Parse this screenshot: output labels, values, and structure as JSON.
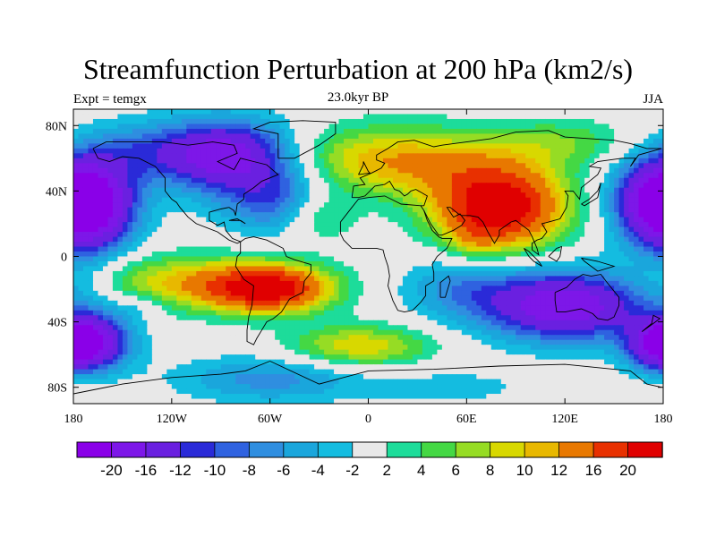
{
  "chart_data": {
    "type": "heatmap",
    "title": "Streamfunction Perturbation at 200 hPa (km2/s)",
    "subtitle": "23.0kyr BP",
    "left_label": "Expt = temgx",
    "right_label": "JJA",
    "xlim": [
      -180,
      180
    ],
    "ylim": [
      -90,
      90
    ],
    "x_ticks": [
      {
        "value": -180,
        "label": "180"
      },
      {
        "value": -120,
        "label": "120W"
      },
      {
        "value": -60,
        "label": "60W"
      },
      {
        "value": 0,
        "label": "0"
      },
      {
        "value": 60,
        "label": "60E"
      },
      {
        "value": 120,
        "label": "120E"
      },
      {
        "value": 180,
        "label": "180"
      }
    ],
    "y_ticks": [
      {
        "value": 80,
        "label": "80N"
      },
      {
        "value": 40,
        "label": "40N"
      },
      {
        "value": 0,
        "label": "0"
      },
      {
        "value": -40,
        "label": "40S"
      },
      {
        "value": -80,
        "label": "80S"
      }
    ],
    "colorbar": {
      "colors": [
        "#8a00e8",
        "#7d17e8",
        "#6a20e0",
        "#2a2ad8",
        "#2f62e0",
        "#2f8ee0",
        "#1aa6dc",
        "#14bce0",
        "#e8e8e8",
        "#1ddc9a",
        "#44d844",
        "#96dc24",
        "#d8d800",
        "#e8b800",
        "#e87800",
        "#e83000",
        "#e00000"
      ],
      "labels": [
        "-20",
        "-16",
        "-12",
        "-10",
        "-8",
        "-6",
        "-4",
        "-2",
        "2",
        "4",
        "6",
        "8",
        "10",
        "12",
        "16",
        "20"
      ]
    },
    "centers": [
      {
        "lon": 80,
        "lat": 30,
        "value": 24,
        "slon": 28,
        "slat": 18
      },
      {
        "lon": 15,
        "lat": 58,
        "value": 12,
        "slon": 50,
        "slat": 15
      },
      {
        "lon": -60,
        "lat": -20,
        "value": 20,
        "slon": 26,
        "slat": 10
      },
      {
        "lon": -110,
        "lat": -16,
        "value": 10,
        "slon": 45,
        "slat": 12
      },
      {
        "lon": -30,
        "lat": 25,
        "value": 7,
        "slon": 16,
        "slat": 11
      },
      {
        "lon": -5,
        "lat": -55,
        "value": 10,
        "slon": 30,
        "slat": 9
      },
      {
        "lon": 65,
        "lat": 10,
        "value": 4,
        "slon": 10,
        "slat": 9
      },
      {
        "lon": 120,
        "lat": 70,
        "value": 5,
        "slon": 30,
        "slat": 10
      },
      {
        "lon": -88,
        "lat": 62,
        "value": -20,
        "slon": 30,
        "slat": 15
      },
      {
        "lon": -170,
        "lat": 30,
        "value": -20,
        "slon": 20,
        "slat": 20
      },
      {
        "lon": 176,
        "lat": 35,
        "value": -14,
        "slon": 20,
        "slat": 18
      },
      {
        "lon": -55,
        "lat": 35,
        "value": -10,
        "slon": 25,
        "slat": 15
      },
      {
        "lon": -145,
        "lat": 65,
        "value": -5,
        "slon": 22,
        "slat": 12
      },
      {
        "lon": 120,
        "lat": -30,
        "value": -20,
        "slon": 35,
        "slat": 15
      },
      {
        "lon": 55,
        "lat": -18,
        "value": -6,
        "slon": 25,
        "slat": 14
      },
      {
        "lon": -170,
        "lat": -52,
        "value": -18,
        "slon": 18,
        "slat": 12
      },
      {
        "lon": 178,
        "lat": -55,
        "value": -12,
        "slon": 14,
        "slat": 10
      },
      {
        "lon": -60,
        "lat": -75,
        "value": -7,
        "slon": 40,
        "slat": 10
      },
      {
        "lon": 50,
        "lat": -80,
        "value": -3,
        "slon": 35,
        "slat": 8
      },
      {
        "lon": -170,
        "lat": -20,
        "value": -3,
        "slon": 12,
        "slat": 12
      },
      {
        "lon": -140,
        "lat": -30,
        "value": -4,
        "slon": 12,
        "slat": 6
      }
    ],
    "coastlines": [
      [
        [
          -168,
          66
        ],
        [
          -160,
          70
        ],
        [
          -140,
          70
        ],
        [
          -125,
          70
        ],
        [
          -110,
          68
        ],
        [
          -95,
          70
        ],
        [
          -82,
          68
        ],
        [
          -80,
          63
        ],
        [
          -92,
          58
        ],
        [
          -82,
          53
        ],
        [
          -78,
          60
        ],
        [
          -70,
          58
        ],
        [
          -62,
          56
        ],
        [
          -55,
          50
        ],
        [
          -65,
          46
        ],
        [
          -70,
          42
        ],
        [
          -76,
          38
        ],
        [
          -76,
          35
        ],
        [
          -80,
          32
        ],
        [
          -81,
          25
        ],
        [
          -82,
          28
        ],
        [
          -85,
          30
        ],
        [
          -90,
          29
        ],
        [
          -97,
          27
        ],
        [
          -97,
          22
        ],
        [
          -92,
          19
        ],
        [
          -88,
          21
        ],
        [
          -87,
          16
        ],
        [
          -83,
          11
        ],
        [
          -78,
          9
        ],
        [
          -80,
          8
        ],
        [
          -85,
          10
        ],
        [
          -92,
          15
        ],
        [
          -105,
          20
        ],
        [
          -110,
          24
        ],
        [
          -115,
          30
        ],
        [
          -117,
          33
        ],
        [
          -120,
          35
        ],
        [
          -124,
          40
        ],
        [
          -124,
          48
        ],
        [
          -130,
          55
        ],
        [
          -140,
          60
        ],
        [
          -150,
          61
        ],
        [
          -158,
          58
        ],
        [
          -165,
          60
        ],
        [
          -168,
          66
        ]
      ],
      [
        [
          -78,
          9
        ],
        [
          -75,
          11
        ],
        [
          -70,
          12
        ],
        [
          -62,
          10
        ],
        [
          -52,
          5
        ],
        [
          -50,
          0
        ],
        [
          -45,
          -2
        ],
        [
          -35,
          -5
        ],
        [
          -35,
          -10
        ],
        [
          -39,
          -15
        ],
        [
          -40,
          -22
        ],
        [
          -48,
          -26
        ],
        [
          -53,
          -34
        ],
        [
          -58,
          -38
        ],
        [
          -62,
          -40
        ],
        [
          -65,
          -45
        ],
        [
          -68,
          -50
        ],
        [
          -70,
          -54
        ],
        [
          -74,
          -52
        ],
        [
          -74,
          -45
        ],
        [
          -73,
          -37
        ],
        [
          -71,
          -30
        ],
        [
          -70,
          -18
        ],
        [
          -76,
          -14
        ],
        [
          -81,
          -6
        ],
        [
          -80,
          0
        ],
        [
          -78,
          2
        ],
        [
          -78,
          9
        ]
      ],
      [
        [
          -10,
          36
        ],
        [
          -9,
          43
        ],
        [
          -2,
          44
        ],
        [
          -5,
          48
        ],
        [
          2,
          51
        ],
        [
          8,
          54
        ],
        [
          10,
          57
        ],
        [
          5,
          59
        ],
        [
          5,
          62
        ],
        [
          12,
          66
        ],
        [
          18,
          70
        ],
        [
          28,
          71
        ],
        [
          40,
          67
        ],
        [
          45,
          68
        ],
        [
          60,
          70
        ],
        [
          75,
          72
        ],
        [
          90,
          76
        ],
        [
          110,
          77
        ],
        [
          120,
          73
        ],
        [
          135,
          72
        ],
        [
          150,
          71
        ],
        [
          160,
          69
        ],
        [
          170,
          66
        ],
        [
          179,
          66
        ]
      ],
      [
        [
          -10,
          36
        ],
        [
          -6,
          36
        ],
        [
          -2,
          37
        ],
        [
          4,
          43
        ],
        [
          10,
          44
        ],
        [
          13,
          46
        ],
        [
          16,
          41
        ],
        [
          19,
          40
        ],
        [
          22,
          37
        ],
        [
          24,
          38
        ],
        [
          26,
          40
        ],
        [
          29,
          41
        ],
        [
          36,
          37
        ],
        [
          35,
          34
        ],
        [
          34,
          31
        ],
        [
          32,
          31
        ]
      ],
      [
        [
          32,
          31
        ],
        [
          20,
          32
        ],
        [
          10,
          37
        ],
        [
          0,
          36
        ],
        [
          -6,
          35
        ],
        [
          -10,
          30
        ],
        [
          -17,
          21
        ],
        [
          -17,
          14
        ],
        [
          -15,
          10
        ],
        [
          -10,
          5
        ],
        [
          -5,
          5
        ],
        [
          5,
          5
        ],
        [
          9,
          4
        ],
        [
          10,
          0
        ],
        [
          12,
          -6
        ],
        [
          13,
          -12
        ],
        [
          12,
          -18
        ],
        [
          15,
          -27
        ],
        [
          18,
          -33
        ],
        [
          22,
          -34
        ],
        [
          27,
          -33
        ],
        [
          32,
          -28
        ],
        [
          35,
          -24
        ],
        [
          35,
          -18
        ],
        [
          40,
          -15
        ],
        [
          40,
          -10
        ],
        [
          39,
          -5
        ],
        [
          42,
          0
        ],
        [
          48,
          5
        ],
        [
          51,
          11
        ],
        [
          45,
          11
        ],
        [
          43,
          12
        ],
        [
          39,
          16
        ],
        [
          36,
          22
        ],
        [
          34,
          28
        ],
        [
          32,
          31
        ]
      ],
      [
        [
          34,
          28
        ],
        [
          38,
          20
        ],
        [
          43,
          13
        ],
        [
          45,
          13
        ],
        [
          52,
          16
        ],
        [
          57,
          19
        ],
        [
          59,
          22
        ],
        [
          56,
          26
        ],
        [
          52,
          24
        ],
        [
          50,
          27
        ],
        [
          48,
          30
        ],
        [
          50,
          30
        ],
        [
          55,
          26
        ],
        [
          57,
          25
        ],
        [
          62,
          25
        ],
        [
          67,
          24
        ],
        [
          70,
          21
        ],
        [
          73,
          15
        ],
        [
          77,
          8
        ],
        [
          80,
          13
        ],
        [
          80,
          16
        ],
        [
          87,
          21
        ],
        [
          90,
          22
        ],
        [
          94,
          19
        ],
        [
          98,
          16
        ],
        [
          100,
          12
        ],
        [
          103,
          5
        ],
        [
          104,
          1
        ],
        [
          100,
          4
        ],
        [
          100,
          8
        ],
        [
          103,
          10
        ],
        [
          106,
          11
        ],
        [
          109,
          15
        ],
        [
          106,
          20
        ],
        [
          110,
          21
        ],
        [
          117,
          23
        ],
        [
          121,
          30
        ],
        [
          122,
          37
        ],
        [
          120,
          40
        ],
        [
          125,
          40
        ],
        [
          129,
          35
        ],
        [
          130,
          42
        ],
        [
          140,
          50
        ],
        [
          142,
          54
        ],
        [
          135,
          55
        ],
        [
          140,
          58
        ],
        [
          155,
          60
        ],
        [
          163,
          60
        ],
        [
          160,
          55
        ],
        [
          165,
          62
        ],
        [
          179,
          66
        ]
      ],
      [
        [
          114,
          -22
        ],
        [
          114,
          -27
        ],
        [
          115,
          -34
        ],
        [
          120,
          -34
        ],
        [
          130,
          -32
        ],
        [
          137,
          -35
        ],
        [
          140,
          -38
        ],
        [
          146,
          -39
        ],
        [
          150,
          -37
        ],
        [
          153,
          -30
        ],
        [
          153,
          -25
        ],
        [
          145,
          -15
        ],
        [
          142,
          -11
        ],
        [
          136,
          -12
        ],
        [
          131,
          -11
        ],
        [
          126,
          -14
        ],
        [
          121,
          -19
        ],
        [
          114,
          -22
        ]
      ],
      [
        [
          95,
          5
        ],
        [
          98,
          3
        ],
        [
          104,
          -3
        ],
        [
          106,
          -6
        ],
        [
          101,
          -3
        ],
        [
          98,
          0
        ],
        [
          95,
          5
        ]
      ],
      [
        [
          44,
          -25
        ],
        [
          47,
          -25
        ],
        [
          50,
          -15
        ],
        [
          49,
          -12
        ],
        [
          44,
          -16
        ],
        [
          44,
          -25
        ]
      ],
      [
        [
          -6,
          50
        ],
        [
          -5,
          52
        ],
        [
          -3,
          56
        ],
        [
          -3,
          58
        ],
        [
          0,
          52
        ],
        [
          1,
          51
        ],
        [
          -6,
          50
        ]
      ],
      [
        [
          -55,
          60
        ],
        [
          -45,
          60
        ],
        [
          -30,
          68
        ],
        [
          -20,
          75
        ],
        [
          -20,
          82
        ],
        [
          -40,
          83
        ],
        [
          -60,
          82
        ],
        [
          -70,
          78
        ],
        [
          -55,
          75
        ],
        [
          -55,
          60
        ]
      ],
      [
        [
          130,
          32
        ],
        [
          135,
          35
        ],
        [
          140,
          40
        ],
        [
          142,
          45
        ],
        [
          140,
          36
        ],
        [
          132,
          31
        ],
        [
          130,
          32
        ]
      ],
      [
        [
          110,
          0
        ],
        [
          115,
          5
        ],
        [
          118,
          6
        ],
        [
          117,
          0
        ],
        [
          115,
          -3
        ],
        [
          110,
          0
        ]
      ],
      [
        [
          130,
          -1
        ],
        [
          140,
          -3
        ],
        [
          150,
          -6
        ],
        [
          140,
          -9
        ],
        [
          132,
          -3
        ],
        [
          130,
          -1
        ]
      ],
      [
        [
          167,
          -46
        ],
        [
          174,
          -41
        ],
        [
          178,
          -38
        ],
        [
          174,
          -36
        ],
        [
          173,
          -41
        ],
        [
          167,
          -46
        ]
      ],
      [
        [
          -78,
          22
        ],
        [
          -75,
          20
        ],
        [
          -80,
          23
        ],
        [
          -85,
          22
        ],
        [
          -78,
          22
        ]
      ],
      [
        [
          -60,
          -64
        ],
        [
          -30,
          -78
        ],
        [
          0,
          -70
        ],
        [
          40,
          -69
        ],
        [
          80,
          -67
        ],
        [
          120,
          -66
        ],
        [
          160,
          -70
        ],
        [
          170,
          -78
        ],
        [
          179,
          -80
        ]
      ],
      [
        [
          -180,
          -84
        ],
        [
          -150,
          -78
        ],
        [
          -120,
          -74
        ],
        [
          -90,
          -72
        ],
        [
          -75,
          -70
        ],
        [
          -60,
          -64
        ]
      ]
    ]
  }
}
